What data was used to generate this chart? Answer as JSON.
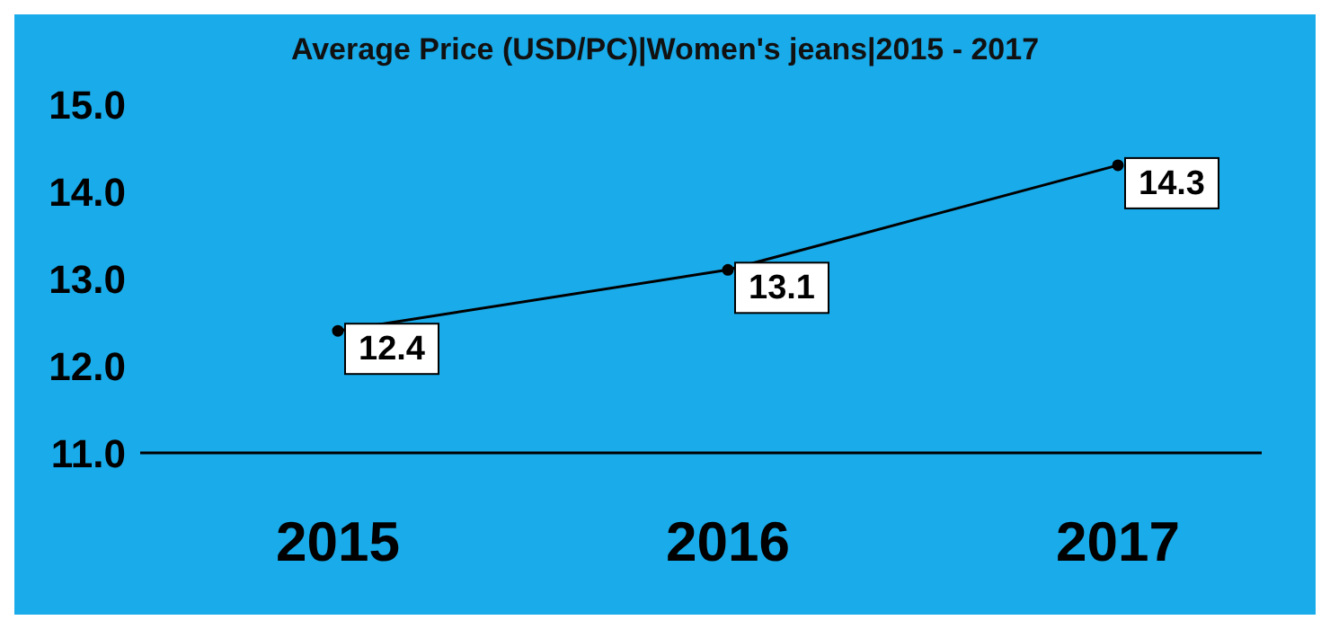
{
  "chart_data": {
    "type": "line",
    "title": "Average Price (USD/PC)|Women's jeans|2015 - 2017",
    "categories": [
      "2015",
      "2016",
      "2017"
    ],
    "series": [
      {
        "color": "#000000",
        "values": [
          12.4,
          13.1,
          14.3
        ]
      }
    ],
    "ylim": [
      11,
      15
    ],
    "yticks": [
      {
        "value": 11,
        "label": "11.0"
      },
      {
        "value": 12,
        "label": "12.0"
      },
      {
        "value": 13,
        "label": "13.0"
      },
      {
        "value": 14,
        "label": "14.0"
      },
      {
        "value": 15,
        "label": "15.0"
      }
    ],
    "grid": false,
    "legend": false,
    "marker": "circle",
    "line_style": "solid",
    "data_labels": true
  }
}
